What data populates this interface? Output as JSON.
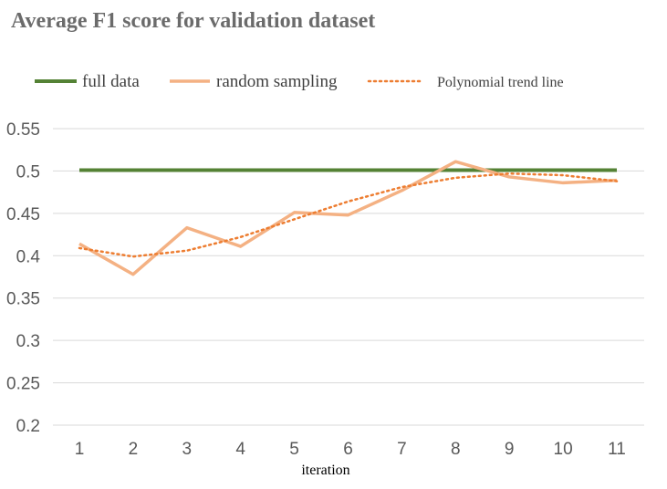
{
  "chart_data": {
    "type": "line",
    "title": "Average F1 score for validation dataset",
    "xlabel": "iteration",
    "ylabel": "",
    "ylim": [
      0.2,
      0.55
    ],
    "yticks": [
      "0.2",
      "0.25",
      "0.3",
      "0.35",
      "0.4",
      "0.45",
      "0.5",
      "0.55"
    ],
    "categories": [
      "1",
      "2",
      "3",
      "4",
      "5",
      "6",
      "7",
      "8",
      "9",
      "10",
      "11"
    ],
    "grid": true,
    "legend_position": "top",
    "series": [
      {
        "name": "full data",
        "color": "#548235",
        "style": "solid",
        "values": [
          0.501,
          0.501,
          0.501,
          0.501,
          0.501,
          0.501,
          0.501,
          0.501,
          0.501,
          0.501,
          0.501
        ]
      },
      {
        "name": "random sampling",
        "color": "#f4b183",
        "style": "solid",
        "values": [
          0.414,
          0.378,
          0.433,
          0.411,
          0.451,
          0.448,
          0.477,
          0.511,
          0.493,
          0.486,
          0.489
        ]
      },
      {
        "name": "Polynomial trend line",
        "color": "#ed7d31",
        "style": "dotted",
        "values": [
          0.409,
          0.399,
          0.406,
          0.422,
          0.443,
          0.464,
          0.481,
          0.492,
          0.497,
          0.495,
          0.488
        ]
      }
    ]
  }
}
